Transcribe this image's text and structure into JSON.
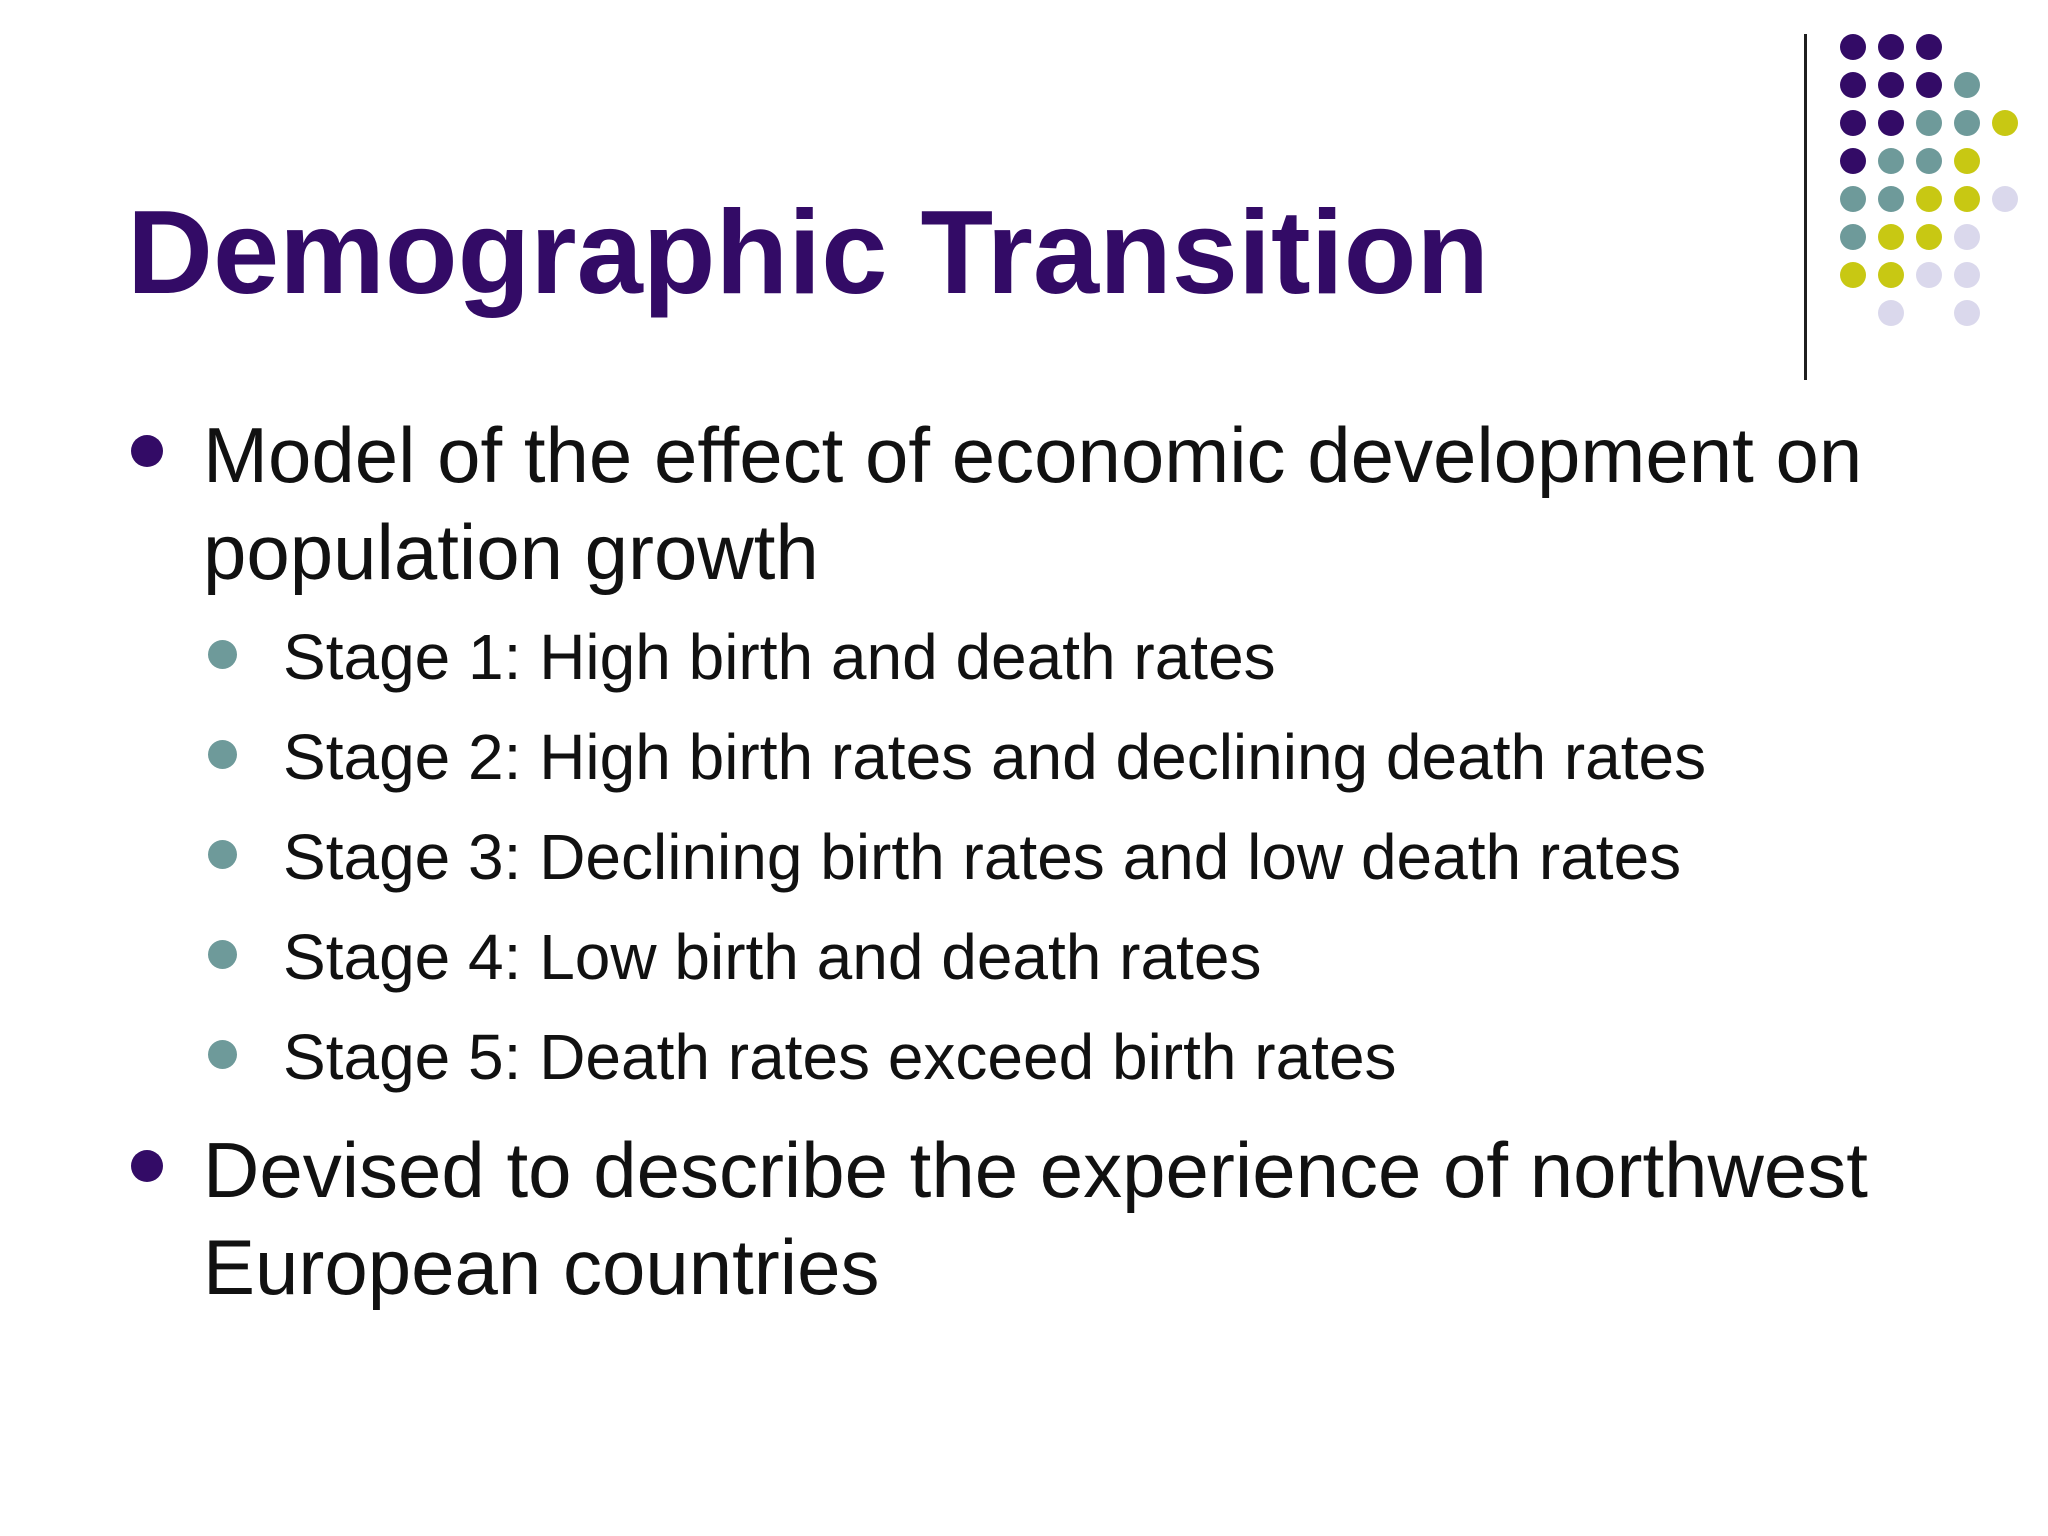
{
  "slide": {
    "title": "Demographic Transition",
    "bullets": [
      {
        "text": "Model of the effect of economic development on population growth",
        "sub_bullets": [
          "Stage 1: High birth and death rates",
          "Stage 2: High birth rates and declining death rates",
          "Stage 3: Declining birth rates and low death rates",
          "Stage 4: Low birth and death rates",
          "Stage 5: Death rates exceed birth rates"
        ]
      },
      {
        "text": "Devised to describe the experience of northwest European countries",
        "sub_bullets": []
      }
    ]
  },
  "colors": {
    "title": "#330b66",
    "primary_bullet": "#330b66",
    "secondary_bullet": "#6e9a9a",
    "text": "#111111",
    "dot_purple": "#330b66",
    "dot_teal": "#6e9a9a",
    "dot_yellow": "#c8c813",
    "dot_lavender": "#dad8ec"
  }
}
